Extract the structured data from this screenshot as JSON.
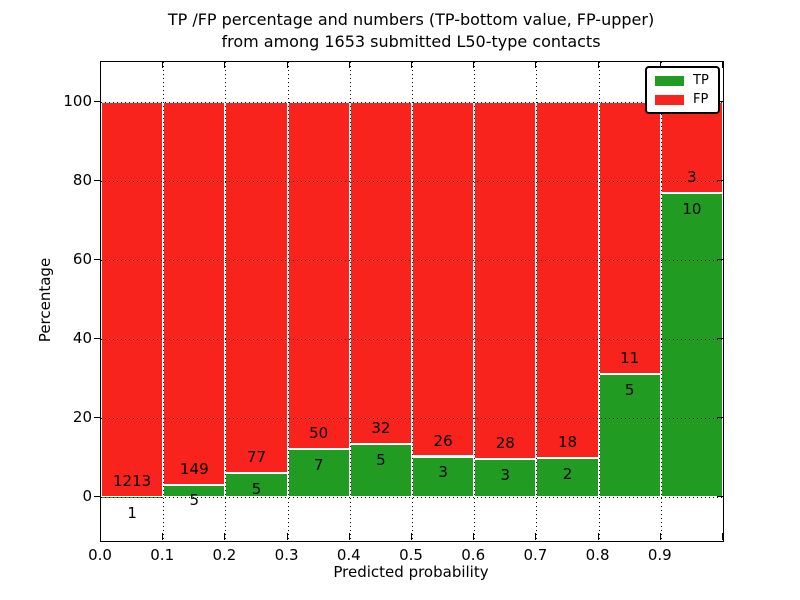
{
  "chart_data": {
    "type": "bar",
    "stacked": true,
    "percentage_normalized": true,
    "title_line1": "TP /FP percentage and numbers (TP-bottom value, FP-upper)",
    "title_line2": "from among 1653 submitted L50-type contacts",
    "xlabel": "Predicted probability",
    "ylabel": "Percentage",
    "total_submitted_contacts": 1653,
    "bin_edges": [
      0.0,
      0.1,
      0.2,
      0.3,
      0.4,
      0.5,
      0.6,
      0.7,
      0.8,
      0.9,
      1.0
    ],
    "categories": [
      "0.0-0.1",
      "0.1-0.2",
      "0.2-0.3",
      "0.3-0.4",
      "0.4-0.5",
      "0.5-0.6",
      "0.6-0.7",
      "0.7-0.8",
      "0.8-0.9",
      "0.9-1.0"
    ],
    "series": [
      {
        "name": "TP",
        "color": "#229b22",
        "counts": [
          1,
          5,
          5,
          7,
          5,
          3,
          3,
          2,
          5,
          10
        ]
      },
      {
        "name": "FP",
        "color": "#f8231d",
        "counts": [
          1213,
          149,
          77,
          50,
          32,
          26,
          28,
          18,
          11,
          3
        ]
      }
    ],
    "bar_edge_color": "#ffffff",
    "xtick_labels": [
      "0.0",
      "0.1",
      "0.2",
      "0.3",
      "0.4",
      "0.5",
      "0.6",
      "0.7",
      "0.8",
      "0.9"
    ],
    "ytick_values": [
      0,
      20,
      40,
      60,
      80,
      100
    ],
    "xlim": [
      0,
      1
    ],
    "ylim": [
      -11,
      110
    ],
    "grid": "dotted",
    "legend": {
      "position": "upper right",
      "items": [
        {
          "label": "TP",
          "color": "#229b22"
        },
        {
          "label": "FP",
          "color": "#f8231d"
        }
      ]
    }
  }
}
